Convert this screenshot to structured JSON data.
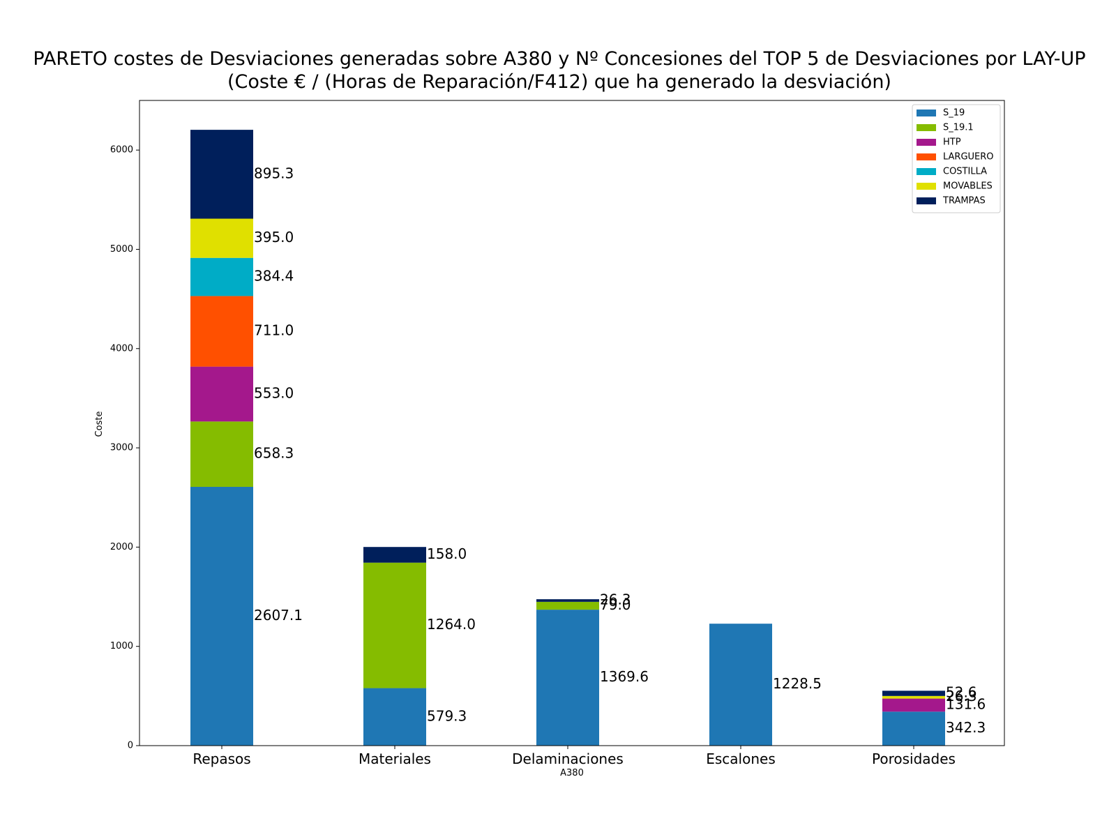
{
  "chart_data": {
    "type": "bar",
    "stacked": true,
    "title": "PARETO costes de Desviaciones  generadas sobre A380 y Nº Concesiones del TOP 5 de Desviaciones por LAY-UP",
    "subtitle": "(Coste € / (Horas de Reparación/F412) que ha generado la desviación)",
    "xlabel": "A380",
    "ylabel": "Coste",
    "ylim": [
      0,
      6500
    ],
    "yticks": [
      0,
      1000,
      2000,
      3000,
      4000,
      5000,
      6000
    ],
    "grid": false,
    "legend_position": "top-right",
    "categories": [
      "Repasos",
      "Materiales",
      "Delaminaciones",
      "Escalones",
      "Porosidades"
    ],
    "series": [
      {
        "name": "S_19",
        "color": "#1f77b4",
        "values": [
          2607.1,
          579.3,
          1369.6,
          1228.5,
          342.3
        ]
      },
      {
        "name": "S_19.1",
        "color": "#85bc00",
        "values": [
          658.3,
          1264.0,
          79.0,
          0,
          0
        ]
      },
      {
        "name": "HTP",
        "color": "#a4188c",
        "values": [
          553.0,
          0,
          0,
          0,
          131.6
        ]
      },
      {
        "name": "LARGUERO",
        "color": "#ff5000",
        "values": [
          711.0,
          0,
          0,
          0,
          0
        ]
      },
      {
        "name": "COSTILLA",
        "color": "#00acc6",
        "values": [
          384.4,
          0,
          0,
          0,
          0
        ]
      },
      {
        "name": "MOVABLES",
        "color": "#e0e000",
        "values": [
          395.0,
          0,
          0,
          0,
          26.3
        ]
      },
      {
        "name": "TRAMPAS",
        "color": "#001f5b",
        "values": [
          895.3,
          158.0,
          26.3,
          0,
          52.6
        ]
      }
    ]
  }
}
